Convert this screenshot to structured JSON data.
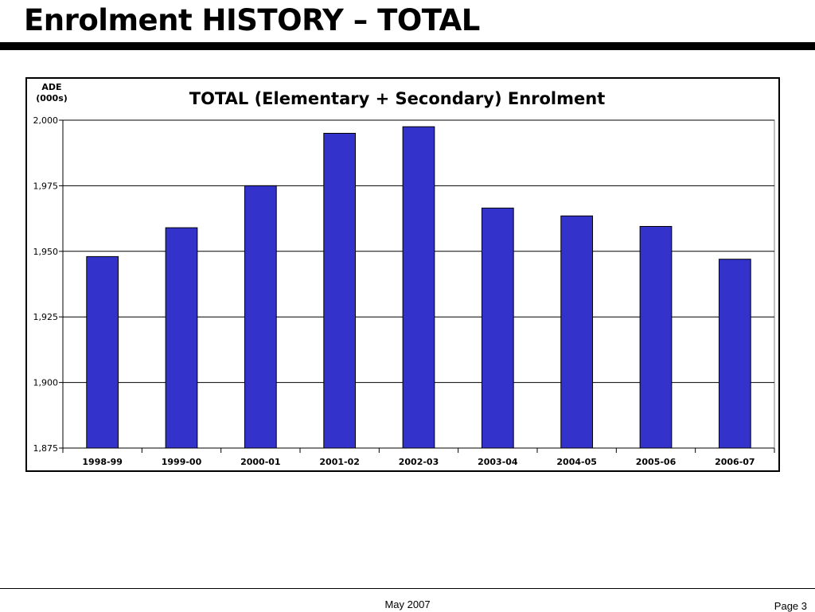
{
  "slide": {
    "title": "Enrolment HISTORY – TOTAL",
    "footer_date": "May 2007",
    "footer_page": "Page 3"
  },
  "chart_data": {
    "type": "bar",
    "title": "TOTAL (Elementary + Secondary) Enrolment",
    "ylabel_lines": [
      "ADE",
      "(000s)"
    ],
    "xlabel": "",
    "categories": [
      "1998-99",
      "1999-00",
      "2000-01",
      "2001-02",
      "2002-03",
      "2003-04",
      "2004-05",
      "2005-06",
      "2006-07"
    ],
    "values": [
      1948,
      1959,
      1975,
      1995,
      1997.5,
      1966.5,
      1963.5,
      1959.5,
      1947
    ],
    "ylim": [
      1875,
      2000
    ],
    "yticks": [
      2000,
      1975,
      1950,
      1925,
      1900,
      1875
    ],
    "ytick_labels": [
      "2,000",
      "1,975",
      "1,950",
      "1,925",
      "1,900",
      "1,875"
    ],
    "bar_color": "#3333CC",
    "grid": true,
    "legend": "none"
  }
}
